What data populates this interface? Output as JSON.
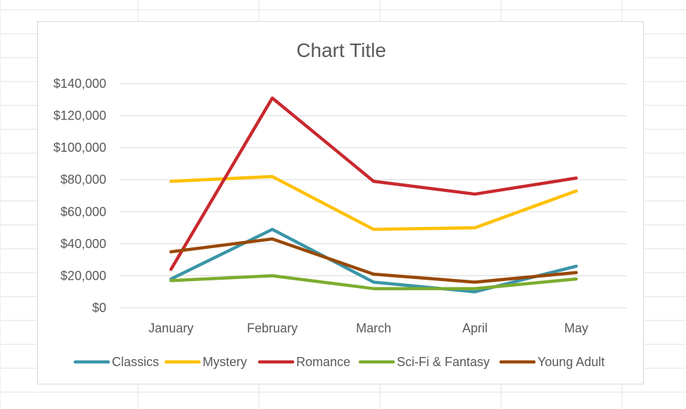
{
  "chart_data": {
    "type": "line",
    "title": "Chart Title",
    "xlabel": "",
    "ylabel": "",
    "categories": [
      "January",
      "February",
      "March",
      "April",
      "May"
    ],
    "ylim": [
      0,
      140000
    ],
    "y_ticks": [
      0,
      20000,
      40000,
      60000,
      80000,
      100000,
      120000,
      140000
    ],
    "y_tick_labels": [
      "$0",
      "$20,000",
      "$40,000",
      "$60,000",
      "$80,000",
      "$100,000",
      "$120,000",
      "$140,000"
    ],
    "grid": true,
    "legend_position": "bottom",
    "series": [
      {
        "name": "Classics",
        "color": "#3b95a8",
        "values": [
          18000,
          49000,
          16000,
          10000,
          26000
        ]
      },
      {
        "name": "Mystery",
        "color": "#ffc000",
        "values": [
          79000,
          82000,
          49000,
          50000,
          73000
        ]
      },
      {
        "name": "Romance",
        "color": "#c8282e",
        "values": [
          24000,
          131000,
          79000,
          71000,
          81000
        ]
      },
      {
        "name": "Sci-Fi & Fantasy",
        "color": "#7cac2f",
        "values": [
          17000,
          20000,
          12000,
          12000,
          18000
        ]
      },
      {
        "name": "Young Adult",
        "color": "#984807",
        "values": [
          35000,
          43000,
          21000,
          16000,
          22000
        ]
      }
    ]
  }
}
